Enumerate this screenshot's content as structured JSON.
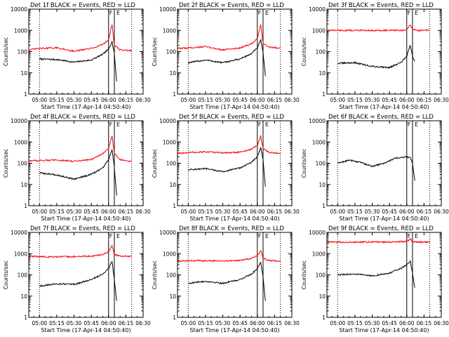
{
  "figure": {
    "xlabel": "Start Time (17-Apr-14 04:50:40)",
    "ylabel": "Counts/sec",
    "x_tick_labels": [
      "05:00",
      "05:15",
      "05:30",
      "05:45",
      "06:00",
      "06:15",
      "06:30"
    ],
    "y_tick_labels": [
      "1",
      "10",
      "100",
      "1000",
      "10000"
    ],
    "colors": {
      "events": "#000000",
      "lld": "#ff0000",
      "background": "#ffffff"
    }
  },
  "chart_data": [
    {
      "type": "line",
      "title": "Det 1f BLACK = Events, RED = LLD",
      "xlim": [
        "04:50:40",
        "06:30"
      ],
      "ylim": [
        1,
        10000
      ],
      "yscale": "log",
      "annotations": [
        {
          "label": "F",
          "time": "06:00"
        },
        {
          "label": "E",
          "time": "06:05"
        }
      ],
      "series": [
        {
          "name": "Events",
          "color": "#000000",
          "x": [
            "05:00",
            "05:15",
            "05:30",
            "05:45",
            "05:55",
            "06:00",
            "06:03",
            "06:05",
            "06:07"
          ],
          "y": [
            45,
            42,
            32,
            40,
            75,
            130,
            300,
            80,
            4
          ]
        },
        {
          "name": "LLD",
          "color": "#ff0000",
          "x": [
            "04:51",
            "05:00",
            "05:15",
            "05:30",
            "05:45",
            "05:55",
            "06:00",
            "06:03",
            "06:05",
            "06:10",
            "06:20"
          ],
          "y": [
            120,
            140,
            150,
            105,
            140,
            220,
            350,
            2000,
            200,
            120,
            110
          ]
        }
      ]
    },
    {
      "type": "line",
      "title": "Det 2f BLACK = Events, RED = LLD",
      "xlim": [
        "04:50:40",
        "06:30"
      ],
      "ylim": [
        1,
        10000
      ],
      "yscale": "log",
      "annotations": [
        {
          "label": "F",
          "time": "06:00"
        },
        {
          "label": "E",
          "time": "06:05"
        }
      ],
      "series": [
        {
          "name": "Events",
          "color": "#000000",
          "x": [
            "05:00",
            "05:15",
            "05:30",
            "05:45",
            "05:55",
            "06:00",
            "06:03",
            "06:05",
            "06:07"
          ],
          "y": [
            30,
            40,
            30,
            45,
            80,
            150,
            350,
            90,
            7
          ]
        },
        {
          "name": "LLD",
          "color": "#ff0000",
          "x": [
            "04:51",
            "05:00",
            "05:15",
            "05:30",
            "05:45",
            "05:55",
            "06:00",
            "06:03",
            "06:05",
            "06:10",
            "06:20"
          ],
          "y": [
            140,
            150,
            170,
            120,
            150,
            230,
            400,
            1800,
            250,
            160,
            150
          ]
        }
      ]
    },
    {
      "type": "line",
      "title": "Det 3f BLACK = Events, RED = LLD",
      "xlim": [
        "04:50:40",
        "06:30"
      ],
      "ylim": [
        1,
        10000
      ],
      "yscale": "log",
      "annotations": [
        {
          "label": "F",
          "time": "06:00"
        },
        {
          "label": "E",
          "time": "06:05"
        }
      ],
      "series": [
        {
          "name": "Events",
          "color": "#000000",
          "x": [
            "05:00",
            "05:15",
            "05:30",
            "05:45",
            "05:55",
            "06:00",
            "06:03",
            "06:05",
            "06:07"
          ],
          "y": [
            28,
            30,
            20,
            18,
            30,
            60,
            200,
            60,
            35
          ]
        },
        {
          "name": "LLD",
          "color": "#ff0000",
          "x": [
            "04:51",
            "05:00",
            "05:15",
            "05:30",
            "05:45",
            "05:55",
            "06:00",
            "06:03",
            "06:05",
            "06:10",
            "06:20"
          ],
          "y": [
            1000,
            1000,
            1000,
            1000,
            1000,
            1000,
            1050,
            1800,
            1100,
            1000,
            1000
          ]
        }
      ]
    },
    {
      "type": "line",
      "title": "Det 4f BLACK = Events, RED = LLD",
      "xlim": [
        "04:50:40",
        "06:30"
      ],
      "ylim": [
        1,
        10000
      ],
      "yscale": "log",
      "annotations": [
        {
          "label": "F",
          "time": "06:00"
        },
        {
          "label": "E",
          "time": "06:05"
        }
      ],
      "series": [
        {
          "name": "Events",
          "color": "#000000",
          "x": [
            "05:00",
            "05:15",
            "05:30",
            "05:45",
            "05:55",
            "06:00",
            "06:03",
            "06:05",
            "06:07"
          ],
          "y": [
            35,
            28,
            18,
            30,
            60,
            150,
            450,
            60,
            3
          ]
        },
        {
          "name": "LLD",
          "color": "#ff0000",
          "x": [
            "04:51",
            "05:00",
            "05:15",
            "05:30",
            "05:45",
            "05:55",
            "06:00",
            "06:03",
            "06:05",
            "06:10",
            "06:20"
          ],
          "y": [
            130,
            135,
            140,
            125,
            150,
            280,
            500,
            2000,
            300,
            150,
            120
          ]
        }
      ]
    },
    {
      "type": "line",
      "title": "Det 5f BLACK = Events, RED = LLD",
      "xlim": [
        "04:50:40",
        "06:30"
      ],
      "ylim": [
        1,
        10000
      ],
      "yscale": "log",
      "annotations": [
        {
          "label": "F",
          "time": "06:00"
        },
        {
          "label": "E",
          "time": "06:05"
        }
      ],
      "series": [
        {
          "name": "Events",
          "color": "#000000",
          "x": [
            "05:00",
            "05:15",
            "05:30",
            "05:45",
            "05:55",
            "06:00",
            "06:03",
            "06:05",
            "06:07"
          ],
          "y": [
            50,
            55,
            40,
            60,
            110,
            200,
            550,
            150,
            8
          ]
        },
        {
          "name": "LLD",
          "color": "#ff0000",
          "x": [
            "04:51",
            "05:00",
            "05:15",
            "05:30",
            "05:45",
            "05:55",
            "06:00",
            "06:03",
            "06:05",
            "06:10",
            "06:20"
          ],
          "y": [
            300,
            320,
            340,
            310,
            330,
            450,
            700,
            1800,
            500,
            320,
            300
          ]
        }
      ]
    },
    {
      "type": "line",
      "title": "Det 6f BLACK = Events, RED = LLD",
      "xlim": [
        "04:50:40",
        "06:30"
      ],
      "ylim": [
        1,
        10000
      ],
      "yscale": "log",
      "annotations": [
        {
          "label": "F",
          "time": "06:00"
        },
        {
          "label": "E",
          "time": "06:05"
        }
      ],
      "series": [
        {
          "name": "Events",
          "color": "#000000",
          "x": [
            "05:00",
            "05:10",
            "05:20",
            "05:30",
            "05:40",
            "05:50",
            "06:00",
            "06:03",
            "06:05",
            "06:07"
          ],
          "y": [
            100,
            140,
            110,
            70,
            100,
            170,
            200,
            180,
            100,
            15
          ]
        },
        {
          "name": "LLD",
          "color": "#ff0000",
          "x": [],
          "y": []
        }
      ]
    },
    {
      "type": "line",
      "title": "Det 7f BLACK = Events, RED = LLD",
      "xlim": [
        "04:50:40",
        "06:30"
      ],
      "ylim": [
        1,
        10000
      ],
      "yscale": "log",
      "annotations": [
        {
          "label": "F",
          "time": "06:00"
        },
        {
          "label": "E",
          "time": "06:05"
        }
      ],
      "series": [
        {
          "name": "Events",
          "color": "#000000",
          "x": [
            "05:00",
            "05:15",
            "05:30",
            "05:45",
            "05:55",
            "06:00",
            "06:03",
            "06:05",
            "06:07"
          ],
          "y": [
            30,
            38,
            35,
            60,
            110,
            200,
            450,
            60,
            6
          ]
        },
        {
          "name": "LLD",
          "color": "#ff0000",
          "x": [
            "04:51",
            "05:00",
            "05:15",
            "05:30",
            "05:45",
            "05:55",
            "06:00",
            "06:03",
            "06:05",
            "06:10",
            "06:20"
          ],
          "y": [
            750,
            720,
            700,
            730,
            760,
            900,
            1200,
            2500,
            900,
            760,
            750
          ]
        }
      ]
    },
    {
      "type": "line",
      "title": "Det 8f BLACK = Events, RED = LLD",
      "xlim": [
        "04:50:40",
        "06:30"
      ],
      "ylim": [
        1,
        10000
      ],
      "yscale": "log",
      "annotations": [
        {
          "label": "F",
          "time": "06:00"
        },
        {
          "label": "E",
          "time": "06:05"
        }
      ],
      "series": [
        {
          "name": "Events",
          "color": "#000000",
          "x": [
            "05:00",
            "05:15",
            "05:30",
            "05:45",
            "05:55",
            "06:00",
            "06:03",
            "06:05",
            "06:07"
          ],
          "y": [
            40,
            50,
            40,
            60,
            110,
            200,
            400,
            80,
            6
          ]
        },
        {
          "name": "LLD",
          "color": "#ff0000",
          "x": [
            "04:51",
            "05:00",
            "05:15",
            "05:30",
            "05:45",
            "05:55",
            "06:00",
            "06:03",
            "06:05",
            "06:10",
            "06:20"
          ],
          "y": [
            450,
            460,
            470,
            450,
            480,
            600,
            800,
            1500,
            600,
            480,
            450
          ]
        }
      ]
    },
    {
      "type": "line",
      "title": "Det 9f BLACK = Events, RED = LLD",
      "xlim": [
        "04:50:40",
        "06:30"
      ],
      "ylim": [
        1,
        10000
      ],
      "yscale": "log",
      "annotations": [
        {
          "label": "F",
          "time": "06:00"
        },
        {
          "label": "E",
          "time": "06:05"
        }
      ],
      "series": [
        {
          "name": "Events",
          "color": "#000000",
          "x": [
            "05:00",
            "05:15",
            "05:30",
            "05:45",
            "05:55",
            "06:00",
            "06:03",
            "06:05",
            "06:07"
          ],
          "y": [
            100,
            110,
            90,
            120,
            200,
            300,
            450,
            120,
            25
          ]
        },
        {
          "name": "LLD",
          "color": "#ff0000",
          "x": [
            "04:51",
            "05:00",
            "05:15",
            "05:30",
            "05:45",
            "05:55",
            "06:00",
            "06:03",
            "06:05",
            "06:10",
            "06:20"
          ],
          "y": [
            3500,
            3500,
            3500,
            3500,
            3500,
            3600,
            3700,
            5000,
            3700,
            3500,
            3500
          ]
        }
      ]
    }
  ]
}
